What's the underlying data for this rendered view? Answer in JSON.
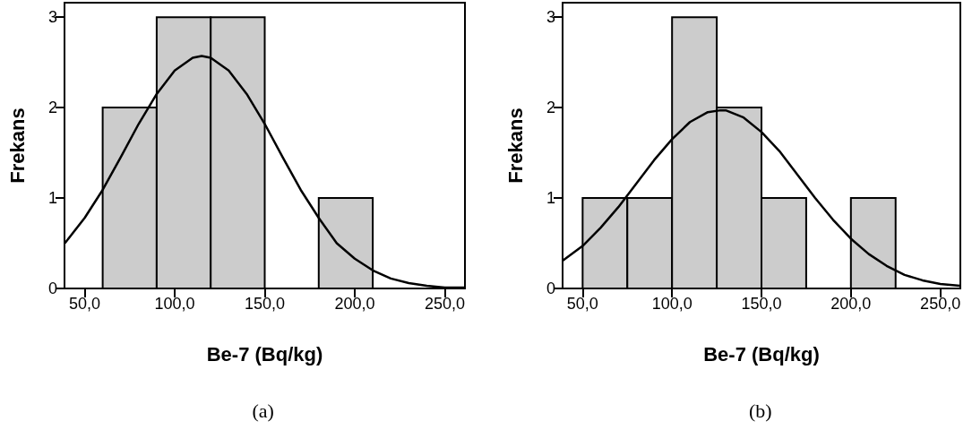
{
  "chart_data": [
    {
      "type": "histogram",
      "xlabel": "Be-7 (Bq/kg)",
      "ylabel": "Frekans",
      "annotations": [
        "(a)"
      ],
      "grid": false,
      "marker": "none",
      "xlim": [
        38.8,
        261.2
      ],
      "xticks": [
        {
          "value": 50,
          "label": "50,0"
        },
        {
          "value": 100,
          "label": "100,0"
        },
        {
          "value": 150,
          "label": "150,0"
        },
        {
          "value": 200,
          "label": "200,0"
        },
        {
          "value": 250,
          "label": "250,0"
        }
      ],
      "ylim": [
        0,
        3.16
      ],
      "yticks": [
        0,
        1,
        2,
        3
      ],
      "series": [
        {
          "type": "histogram",
          "color": "#cccccc",
          "bins": [
            60,
            90,
            120,
            150,
            180,
            210
          ],
          "values": [
            2,
            3,
            3,
            0,
            1
          ]
        },
        {
          "type": "line",
          "color": "#000000",
          "x": [
            39,
            50,
            60,
            70,
            80,
            90,
            100,
            110,
            115,
            120,
            130,
            140,
            150,
            160,
            170,
            180,
            190,
            200,
            210,
            220,
            230,
            240,
            250,
            261
          ],
          "values": [
            0.5,
            0.78,
            1.09,
            1.45,
            1.82,
            2.15,
            2.41,
            2.55,
            2.57,
            2.55,
            2.41,
            2.15,
            1.82,
            1.45,
            1.09,
            0.78,
            0.5,
            0.33,
            0.2,
            0.11,
            0.06,
            0.03,
            0.01,
            0.01
          ]
        }
      ]
    },
    {
      "type": "histogram",
      "xlabel": "Be-7 (Bq/kg)",
      "ylabel": "Frekans",
      "annotations": [
        "(b)"
      ],
      "grid": false,
      "marker": "none",
      "xlim": [
        38.8,
        261.2
      ],
      "xticks": [
        {
          "value": 50,
          "label": "50,0"
        },
        {
          "value": 100,
          "label": "100,0"
        },
        {
          "value": 150,
          "label": "150,0"
        },
        {
          "value": 200,
          "label": "200,0"
        },
        {
          "value": 250,
          "label": "250,0"
        }
      ],
      "ylim": [
        0,
        3.16
      ],
      "yticks": [
        0,
        1,
        2,
        3
      ],
      "series": [
        {
          "type": "histogram",
          "color": "#cccccc",
          "bins": [
            50,
            75,
            100,
            125,
            150,
            175,
            200,
            225
          ],
          "values": [
            1,
            1,
            3,
            2,
            1,
            0,
            1
          ]
        },
        {
          "type": "line",
          "color": "#000000",
          "x": [
            39,
            50,
            60,
            70,
            80,
            90,
            100,
            110,
            120,
            127,
            130,
            140,
            150,
            160,
            170,
            180,
            190,
            200,
            210,
            220,
            230,
            240,
            250,
            261
          ],
          "values": [
            0.31,
            0.47,
            0.67,
            0.9,
            1.16,
            1.42,
            1.65,
            1.84,
            1.95,
            1.97,
            1.97,
            1.89,
            1.73,
            1.52,
            1.26,
            1.0,
            0.76,
            0.55,
            0.38,
            0.25,
            0.15,
            0.09,
            0.05,
            0.03
          ]
        }
      ]
    }
  ]
}
